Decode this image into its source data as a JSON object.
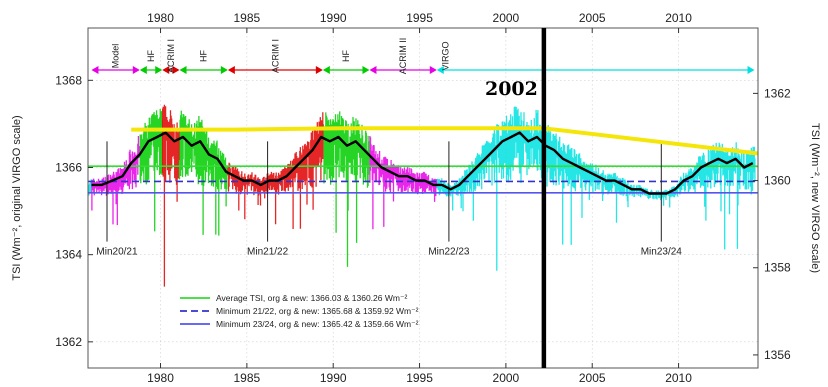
{
  "chart_data": {
    "type": "line",
    "title": "",
    "xlabel": "",
    "ylabel_left": "TSI (Wm⁻², original VIRGO scale)",
    "ylabel_right": "TSI (Wm⁻², new VIRGO scale)",
    "xlim": [
      1975.8,
      2014.6
    ],
    "ylim_left": [
      1361.4,
      1369.2
    ],
    "ylim_right": [
      1355.7,
      1363.5
    ],
    "x_ticks": [
      1980,
      1985,
      1990,
      1995,
      2000,
      2005,
      2010
    ],
    "y_ticks_left": [
      1362,
      1364,
      1366,
      1368
    ],
    "y_ticks_right": [
      1356,
      1358,
      1360,
      1362
    ],
    "grid": true,
    "instruments": [
      {
        "label": "Model",
        "start": 1976.0,
        "end": 1978.8,
        "color": "#e600e6"
      },
      {
        "label": "HF",
        "start": 1978.8,
        "end": 1980.1,
        "color": "#00cc00"
      },
      {
        "label": "ACRIM I",
        "start": 1980.1,
        "end": 1981.1,
        "color": "#e00000"
      },
      {
        "label": "HF",
        "start": 1981.1,
        "end": 1983.9,
        "color": "#00cc00"
      },
      {
        "label": "ACRIM I",
        "start": 1983.9,
        "end": 1989.4,
        "color": "#e00000"
      },
      {
        "label": "HF",
        "start": 1989.4,
        "end": 1992.1,
        "color": "#00cc00"
      },
      {
        "label": "ACRIM II",
        "start": 1992.1,
        "end": 1996.0,
        "color": "#e600e6"
      },
      {
        "label": "VIRGO",
        "start": 1996.0,
        "end": 2014.4,
        "color": "#00e0e0"
      }
    ],
    "series": [
      {
        "name": "Average TSI, org & new: 1366.03 & 1360.26 Wm⁻²",
        "type": "hline",
        "y": 1366.03,
        "color": "#33dd33",
        "dash": false
      },
      {
        "name": "Minimum 21/22, org & new: 1365.68 & 1359.92 Wm⁻²",
        "type": "hline",
        "y": 1365.68,
        "color": "#3333cc",
        "dash": true
      },
      {
        "name": "Minimum 23/24, org & new: 1365.42 & 1359.66 Wm⁻²",
        "type": "hline",
        "y": 1365.42,
        "color": "#5555ee",
        "dash": false
      },
      {
        "name": "",
        "type": "line",
        "color": "#000000",
        "x": [
          1976.0,
          1976.6,
          1977.2,
          1977.8,
          1978.3,
          1978.8,
          1979.3,
          1979.8,
          1980.3,
          1980.8,
          1981.3,
          1981.8,
          1982.3,
          1982.8,
          1983.3,
          1983.8,
          1984.3,
          1984.8,
          1985.3,
          1985.8,
          1986.3,
          1986.8,
          1987.3,
          1987.8,
          1988.3,
          1988.8,
          1989.3,
          1989.8,
          1990.3,
          1990.8,
          1991.3,
          1991.8,
          1992.3,
          1992.8,
          1993.3,
          1993.8,
          1994.3,
          1994.8,
          1995.3,
          1995.8,
          1996.3,
          1996.8,
          1997.3,
          1997.8,
          1998.3,
          1998.8,
          1999.3,
          1999.8,
          2000.3,
          2000.8,
          2001.3,
          2001.8,
          2002.3,
          2002.8,
          2003.3,
          2003.8,
          2004.3,
          2004.8,
          2005.3,
          2005.8,
          2006.3,
          2006.8,
          2007.3,
          2007.8,
          2008.3,
          2008.8,
          2009.3,
          2009.8,
          2010.3,
          2010.8,
          2011.3,
          2011.8,
          2012.3,
          2012.8,
          2013.3,
          2013.8,
          2014.3
        ],
        "y": [
          1365.6,
          1365.6,
          1365.7,
          1365.8,
          1366.1,
          1366.3,
          1366.6,
          1366.7,
          1366.8,
          1366.6,
          1366.7,
          1366.5,
          1366.6,
          1366.3,
          1366.2,
          1365.9,
          1365.8,
          1365.7,
          1365.7,
          1365.6,
          1365.7,
          1365.7,
          1365.8,
          1366.0,
          1366.2,
          1366.4,
          1366.7,
          1366.6,
          1366.7,
          1366.5,
          1366.6,
          1366.4,
          1366.2,
          1366.0,
          1365.9,
          1365.8,
          1365.8,
          1365.7,
          1365.7,
          1365.6,
          1365.6,
          1365.5,
          1365.6,
          1365.8,
          1366.0,
          1366.2,
          1366.4,
          1366.6,
          1366.7,
          1366.8,
          1366.6,
          1366.7,
          1366.5,
          1366.4,
          1366.2,
          1366.1,
          1366.0,
          1365.9,
          1365.8,
          1365.7,
          1365.7,
          1365.6,
          1365.5,
          1365.5,
          1365.4,
          1365.4,
          1365.4,
          1365.5,
          1365.7,
          1365.8,
          1366.0,
          1366.1,
          1366.2,
          1366.1,
          1366.2,
          1366.0,
          1366.1
        ]
      },
      {
        "name": "",
        "type": "line",
        "color": "#f5e60a",
        "x": [
          1978.3,
          1984.3,
          1990.5,
          2002.2,
          2014.6
        ],
        "y": [
          1366.87,
          1366.87,
          1366.9,
          1366.9,
          1366.32
        ]
      }
    ],
    "solar_minima": [
      {
        "label": "Min20/21",
        "x": 1976.9
      },
      {
        "label": "Min21/22",
        "x": 1986.2
      },
      {
        "label": "Min22/23",
        "x": 1996.7
      },
      {
        "label": "Min23/24",
        "x": 2009.0
      }
    ],
    "annotations": [
      {
        "text": "2002",
        "x": 2002.2
      }
    ],
    "legend_position": "bottom-left"
  }
}
